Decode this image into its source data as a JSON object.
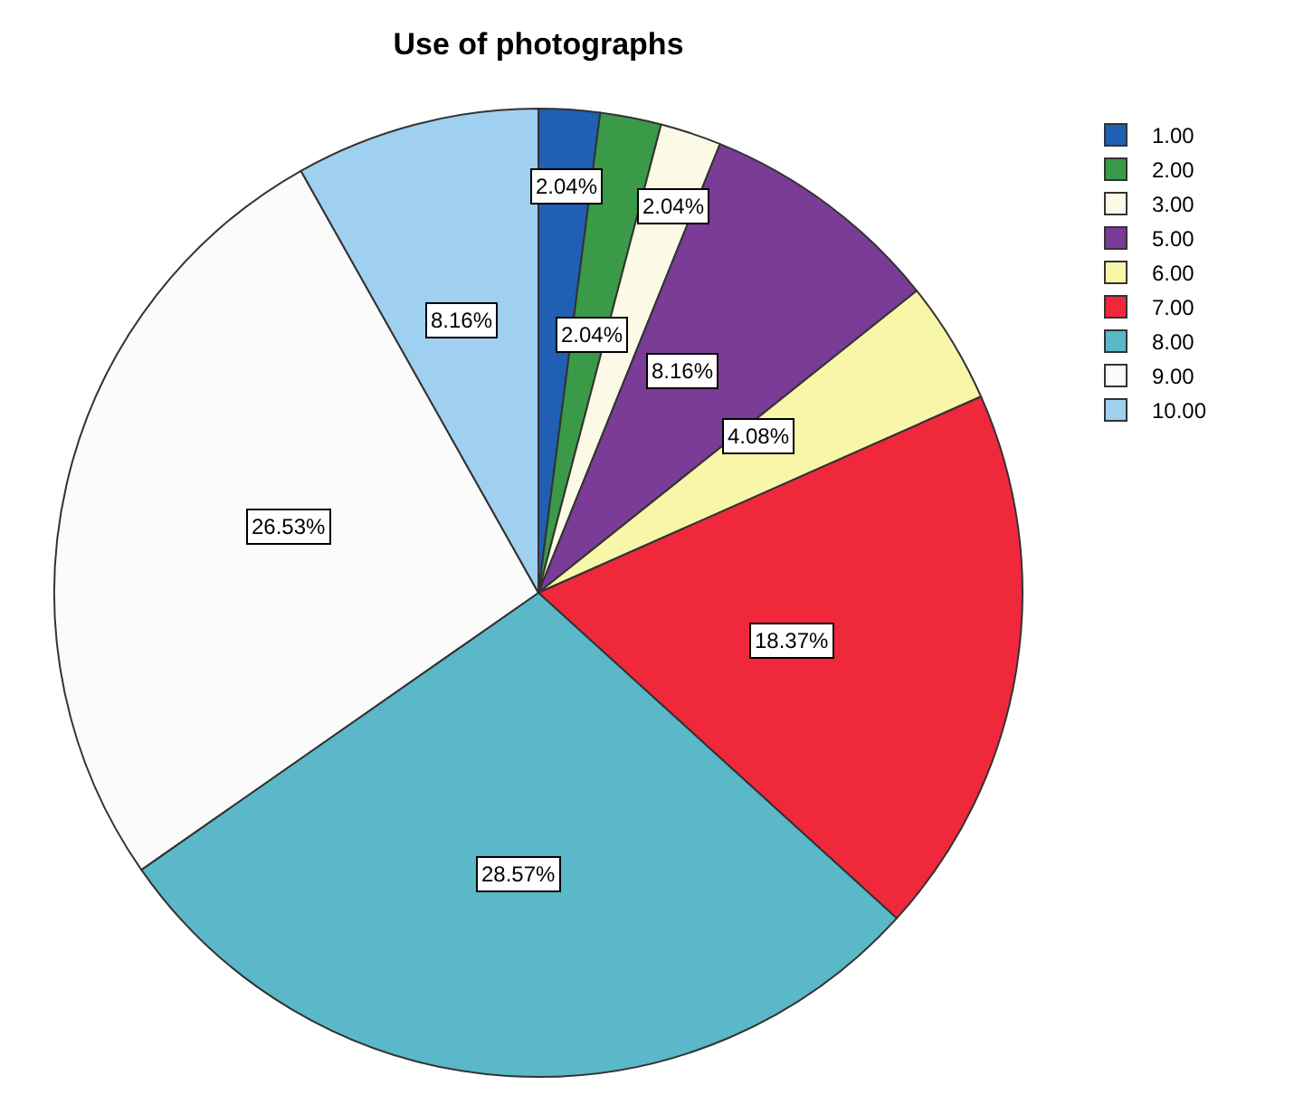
{
  "chart_data": {
    "type": "pie",
    "title": "Use of photographs",
    "categories": [
      "1.00",
      "2.00",
      "3.00",
      "5.00",
      "6.00",
      "7.00",
      "8.00",
      "9.00",
      "10.00"
    ],
    "values": [
      2.04,
      2.04,
      2.04,
      8.16,
      4.08,
      18.37,
      28.57,
      26.53,
      8.16
    ],
    "value_labels": [
      "2.04%",
      "2.04%",
      "2.04%",
      "8.16%",
      "4.08%",
      "18.37%",
      "28.57%",
      "26.53%",
      "8.16%"
    ],
    "colors": [
      "#1f5fb4",
      "#3a9a48",
      "#fafae6",
      "#7a3c96",
      "#f8f6a8",
      "#f0283c",
      "#5ab8c8",
      "#fbfbfb",
      "#9fd0f0"
    ],
    "legend": "top right"
  }
}
